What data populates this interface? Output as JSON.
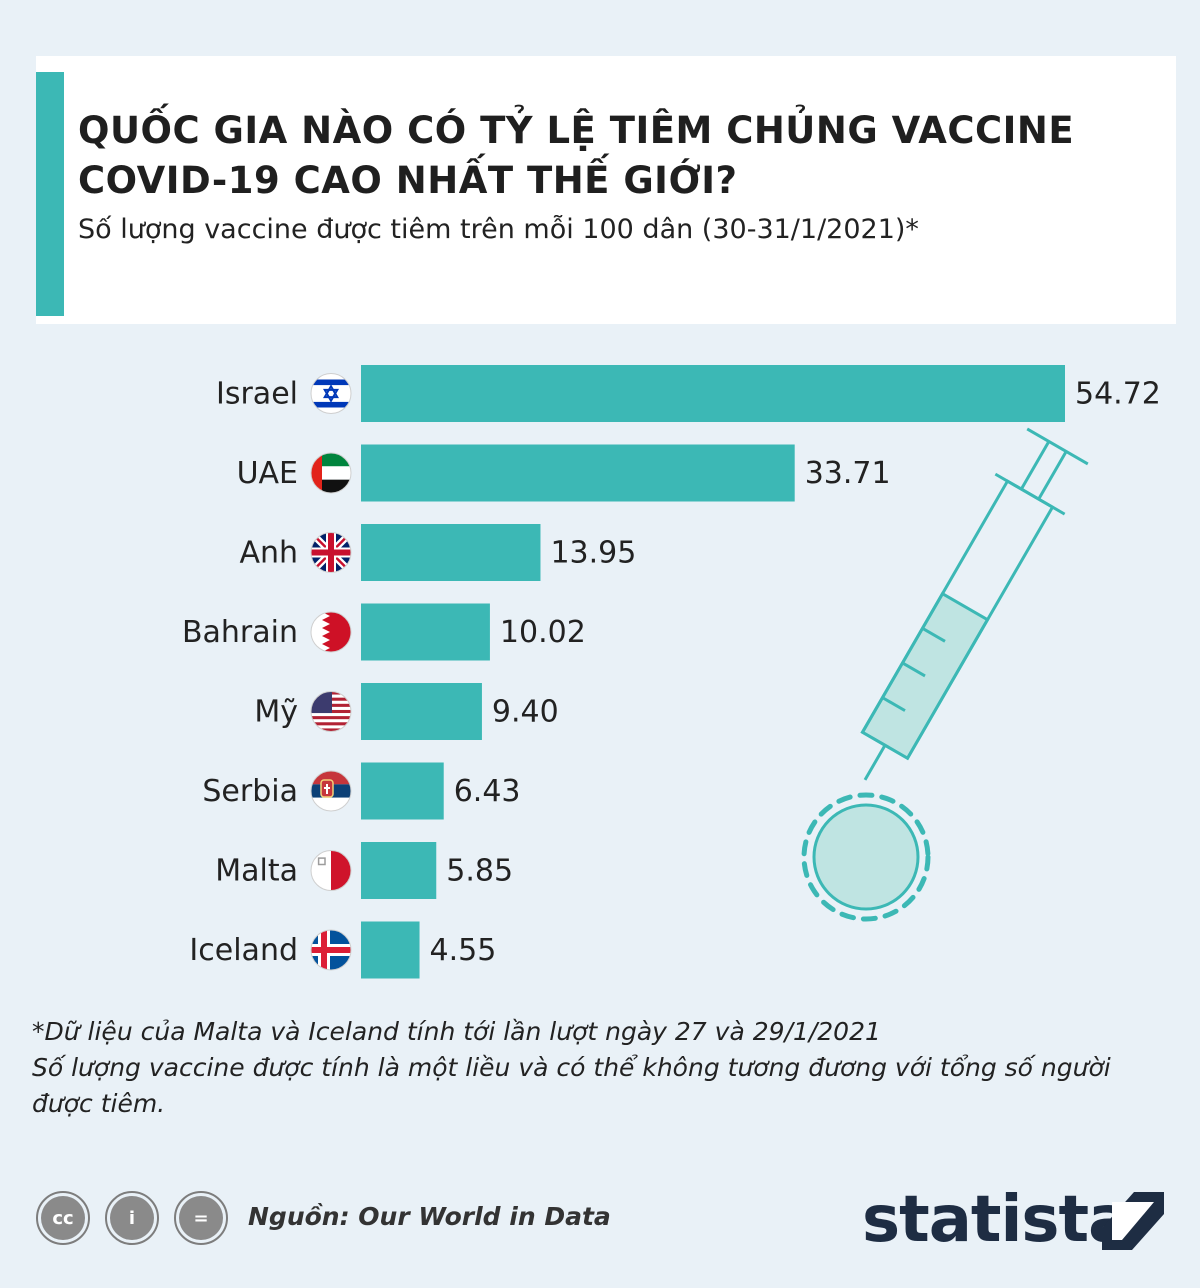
{
  "header": {
    "title": "QUỐC GIA NÀO CÓ TỶ LỆ TIÊM CHỦNG VACCINE COVID-19 CAO NHẤT THẾ GIỚI?",
    "subtitle": "Số lượng vaccine được tiêm trên mỗi 100 dân (30-31/1/2021)*"
  },
  "chart_data": {
    "type": "bar",
    "orientation": "horizontal",
    "categories": [
      "Israel",
      "UAE",
      "Anh",
      "Bahrain",
      "Mỹ",
      "Serbia",
      "Malta",
      "Iceland"
    ],
    "values": [
      54.72,
      33.71,
      13.95,
      10.02,
      9.4,
      6.43,
      5.85,
      4.55
    ],
    "value_labels": [
      "54.72",
      "33.71",
      "13.95",
      "10.02",
      "9.40",
      "6.43",
      "5.85",
      "4.55"
    ],
    "flag_icons": [
      "israel-flag-icon",
      "uae-flag-icon",
      "uk-flag-icon",
      "bahrain-flag-icon",
      "usa-flag-icon",
      "serbia-flag-icon",
      "malta-flag-icon",
      "iceland-flag-icon"
    ],
    "bar_color": "#3cb8b5",
    "title": "",
    "xlabel": "",
    "ylabel": "",
    "grid": false
  },
  "illustration": {
    "icon": "syringe-virus-icon",
    "color": "#3cb8b5"
  },
  "notes": [
    "*Dữ liệu của Malta và Iceland tính tới lần lượt ngày 27 và 29/1/2021",
    "Số lượng vaccine được tính là một liều và có thể không tương đương với tổng số người được tiêm."
  ],
  "footer": {
    "license_icons": [
      "cc-icon",
      "attribution-icon",
      "no-derivatives-icon"
    ],
    "license_labels": [
      "cc",
      "i",
      "="
    ],
    "source": "Nguồn: Our World in Data",
    "brand": "statista"
  },
  "colors": {
    "accent": "#3cb8b5",
    "background": "#e9f1f7",
    "brand": "#1e2d43"
  }
}
